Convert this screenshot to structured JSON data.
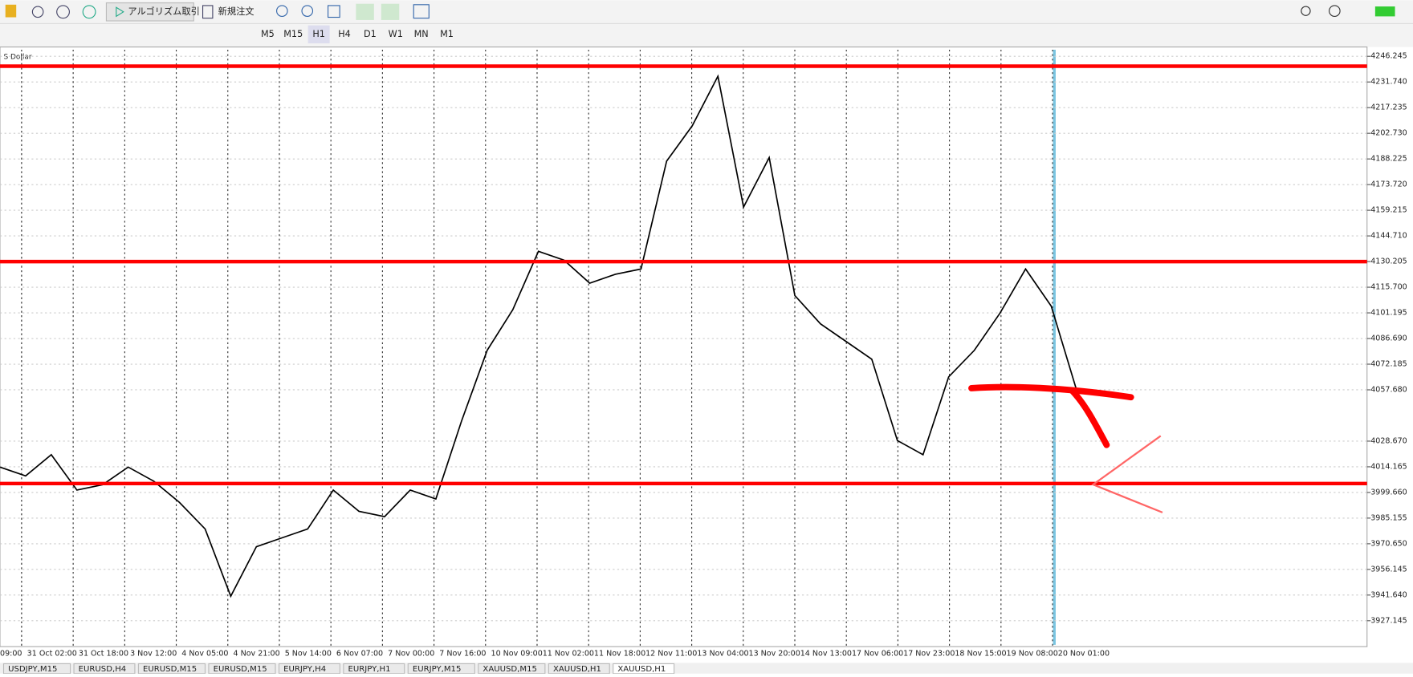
{
  "toolbar": {
    "algo_trading": "アルゴリズム取引",
    "new_order": "新規注文",
    "timeframes": [
      "M5",
      "M15",
      "H1",
      "H4",
      "D1",
      "W1",
      "MN",
      "M1"
    ],
    "active_timeframe": 2
  },
  "chart": {
    "symbol_label": "S Dollar",
    "ylim": [
      3913,
      4250
    ],
    "yticks": [
      4246.245,
      {
        "value": 4231.74,
        "label": "4231.740"
      },
      4217.235,
      {
        "value": 4202.73,
        "label": "4202.730"
      },
      4188.225,
      {
        "value": 4173.72,
        "label": "4173.720"
      },
      4159.215,
      {
        "value": 4144.71,
        "label": "4144.710"
      },
      4130.205,
      {
        "value": 4115.7,
        "label": "4115.700"
      },
      4101.195,
      {
        "value": 4086.69,
        "label": "4086.690"
      },
      4072.185,
      {
        "value": 4057.68,
        "label": "4057.680"
      },
      {
        "value": 4028.67,
        "label": "4028.670"
      },
      4014.165,
      {
        "value": 3999.66,
        "label": "3999.660"
      },
      3985.155,
      {
        "value": 3970.65,
        "label": "3970.650"
      },
      3956.145,
      {
        "value": 3941.64,
        "label": "3941.640"
      },
      3927.145
    ],
    "time_labels": [
      "09:00",
      "31 Oct 02:00",
      "31 Oct 18:00",
      "3 Nov 12:00",
      "4 Nov 05:00",
      "4 Nov 21:00",
      "5 Nov 14:00",
      "6 Nov 07:00",
      "7 Nov 00:00",
      "7 Nov 16:00",
      "10 Nov 09:00",
      "11 Nov 02:00",
      "11 Nov 18:00",
      "12 Nov 11:00",
      "13 Nov 04:00",
      "13 Nov 20:00",
      "14 Nov 13:00",
      "17 Nov 06:00",
      "17 Nov 23:00",
      "18 Nov 15:00",
      "19 Nov 08:00",
      "20 Nov 01:00"
    ],
    "price": {
      "color": "#000000",
      "values": [
        4014,
        4009,
        4021,
        4001,
        4004,
        4014,
        4006,
        3994,
        3979,
        3941,
        3969,
        3974,
        3979,
        4001,
        3989,
        3986,
        4001,
        3996,
        4040,
        4080,
        4103,
        4136,
        4131,
        4118,
        4123,
        4126,
        4187,
        4207,
        4235,
        4161,
        4189,
        4111,
        4095,
        4085,
        4075,
        4029,
        4021,
        4065,
        4080,
        4101,
        4126,
        4105,
        4057
      ]
    },
    "levels": {
      "color": "#ff0000",
      "values": [
        4240.7,
        4130.2,
        4004.7
      ]
    }
  },
  "tabs": {
    "items": [
      "USDJPY,M15",
      "EURUSD,H4",
      "EURUSD,M15",
      "EURUSD,M15",
      "EURJPY,H4",
      "EURJPY,H1",
      "EURJPY,M15",
      "XAUUSD,M15",
      "XAUUSD,H1",
      "XAUUSD,H1"
    ],
    "active": 9
  }
}
